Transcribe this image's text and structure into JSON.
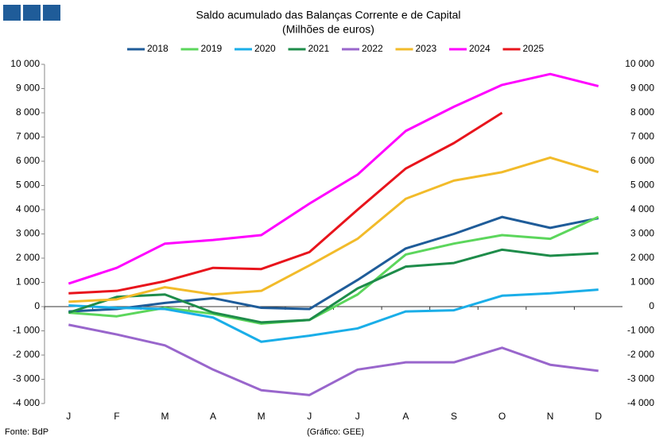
{
  "chart_data": {
    "type": "line",
    "title": "Saldo acumulado  das Balanças Corrente e de Capital",
    "subtitle": "(Milhões de euros)",
    "source": "Fonte: BdP",
    "credit": "(Gráfico: GEE)",
    "categories": [
      "J",
      "F",
      "M",
      "A",
      "M",
      "J",
      "J",
      "A",
      "S",
      "O",
      "N",
      "D"
    ],
    "series": [
      {
        "name": "2018",
        "color": "#1f5c99",
        "values": [
          -200,
          -100,
          150,
          350,
          -50,
          -100,
          1100,
          2400,
          3000,
          3700,
          3250,
          3650
        ]
      },
      {
        "name": "2019",
        "color": "#5cd65c",
        "values": [
          -250,
          -400,
          -50,
          -300,
          -700,
          -550,
          500,
          2150,
          2600,
          2950,
          2800,
          3700
        ]
      },
      {
        "name": "2020",
        "color": "#1aaee8",
        "values": [
          50,
          -50,
          -100,
          -450,
          -1450,
          -1200,
          -900,
          -200,
          -150,
          450,
          550,
          700
        ]
      },
      {
        "name": "2021",
        "color": "#1e8c4a",
        "values": [
          -250,
          400,
          500,
          -250,
          -650,
          -550,
          750,
          1650,
          1800,
          2350,
          2100,
          2200
        ]
      },
      {
        "name": "2022",
        "color": "#9966cc",
        "values": [
          -750,
          -1150,
          -1600,
          -2600,
          -3450,
          -3650,
          -2600,
          -2300,
          -2300,
          -1700,
          -2400,
          -2650
        ]
      },
      {
        "name": "2023",
        "color": "#f2bb2a",
        "values": [
          200,
          300,
          800,
          500,
          650,
          1700,
          2800,
          4450,
          5200,
          5550,
          6150,
          5550
        ]
      },
      {
        "name": "2024",
        "color": "#ff00ff",
        "values": [
          950,
          1600,
          2600,
          2750,
          2950,
          4250,
          5450,
          7250,
          8250,
          9150,
          9600,
          9100
        ]
      },
      {
        "name": "2025",
        "color": "#e8141c",
        "values": [
          550,
          650,
          1050,
          1600,
          1550,
          2250,
          4000,
          5700,
          6750,
          8000,
          null,
          null
        ]
      }
    ],
    "ylim": [
      -4000,
      10000
    ],
    "yticks": [
      {
        "value": -4000,
        "label": "-4 000"
      },
      {
        "value": -3000,
        "label": "-3 000"
      },
      {
        "value": -2000,
        "label": "-2 000"
      },
      {
        "value": -1000,
        "label": "-1 000"
      },
      0,
      {
        "value": 1000,
        "label": "1 000"
      },
      {
        "value": 2000,
        "label": "2 000"
      },
      {
        "value": 3000,
        "label": "3 000"
      },
      {
        "value": 4000,
        "label": "4 000"
      },
      {
        "value": 5000,
        "label": "5 000"
      },
      {
        "value": 6000,
        "label": "6 000"
      },
      {
        "value": 7000,
        "label": "7 000"
      },
      {
        "value": 8000,
        "label": "8 000"
      },
      {
        "value": 9000,
        "label": "9 000"
      },
      {
        "value": 10000,
        "label": "10 000"
      }
    ],
    "y2lim": [
      -4000,
      10000
    ],
    "y2ticks": [
      {
        "value": -4000,
        "label": "-4 000"
      },
      {
        "value": -3000,
        "label": "-3 000"
      },
      {
        "value": -2000,
        "label": "-2 000"
      },
      {
        "value": -1000,
        "label": "-1 000"
      },
      0,
      {
        "value": 1000,
        "label": "1 000"
      },
      {
        "value": 2000,
        "label": "2 000"
      },
      {
        "value": 3000,
        "label": "3 000"
      },
      {
        "value": 4000,
        "label": "4 000"
      },
      {
        "value": 5000,
        "label": "5 000"
      },
      {
        "value": 6000,
        "label": "6 000"
      },
      {
        "value": 7000,
        "label": "7 000"
      },
      {
        "value": 8000,
        "label": "8 000"
      },
      {
        "value": 9000,
        "label": "9 000"
      },
      {
        "value": 10000,
        "label": "10 000"
      }
    ]
  }
}
